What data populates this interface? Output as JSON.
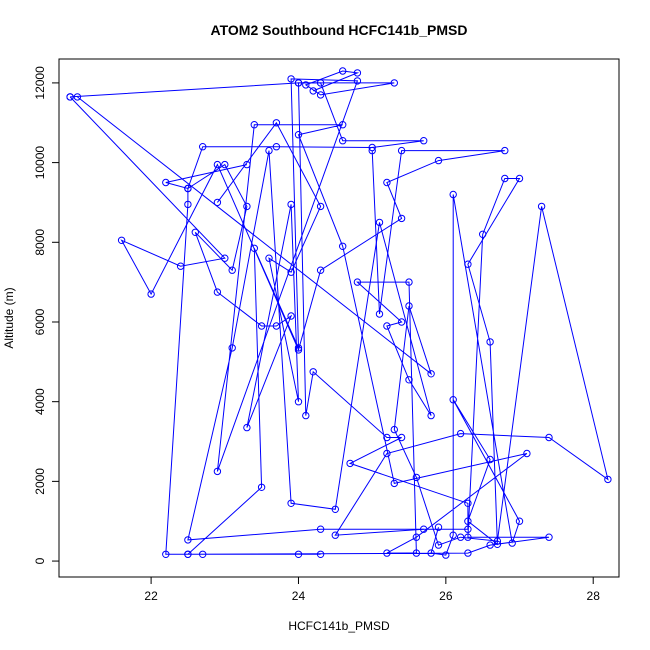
{
  "chart_data": {
    "type": "line",
    "title": "ATOM2 Southbound HCFC141b_PMSD",
    "xlabel": "HCFC141b_PMSD",
    "ylabel": "Altitude (m)",
    "xlim": [
      20.75,
      28.35
    ],
    "ylim": [
      -400,
      12600
    ],
    "x_ticks": [
      22,
      24,
      26,
      28
    ],
    "y_ticks": [
      0,
      2000,
      4000,
      6000,
      8000,
      10000,
      12000
    ],
    "x_tick_labels": [
      "22",
      "24",
      "26",
      "28"
    ],
    "y_tick_labels": [
      "0",
      "2000",
      "4000",
      "6000",
      "8000",
      "10000",
      "12000"
    ],
    "marker": "open-circle",
    "grid": false,
    "series": [
      {
        "color": "#0000ff",
        "points": [
          [
            22.5,
            170
          ],
          [
            24.3,
            170
          ],
          [
            24.0,
            170
          ],
          [
            22.7,
            170
          ],
          [
            22.2,
            170
          ],
          [
            22.5,
            8950
          ],
          [
            22.5,
            9350
          ],
          [
            22.7,
            10400
          ],
          [
            23.7,
            10400
          ],
          [
            25.0,
            10380
          ],
          [
            25.7,
            10550
          ],
          [
            24.6,
            10550
          ],
          [
            24.3,
            12000
          ],
          [
            24.0,
            12000
          ],
          [
            24.1,
            3650
          ],
          [
            24.2,
            4750
          ],
          [
            25.2,
            3100
          ],
          [
            25.4,
            3100
          ],
          [
            24.7,
            2450
          ],
          [
            26.3,
            1450
          ],
          [
            26.3,
            800
          ],
          [
            24.3,
            800
          ],
          [
            22.5,
            530
          ],
          [
            23.1,
            5350
          ],
          [
            23.6,
            10300
          ],
          [
            23.9,
            1450
          ],
          [
            24.5,
            1300
          ],
          [
            25.1,
            8500
          ],
          [
            25.8,
            3650
          ],
          [
            25.5,
            4550
          ],
          [
            25.2,
            5900
          ],
          [
            25.4,
            6000
          ],
          [
            24.8,
            7000
          ],
          [
            25.5,
            7000
          ],
          [
            25.6,
            200
          ],
          [
            25.2,
            200
          ],
          [
            25.6,
            600
          ],
          [
            27.1,
            2700
          ],
          [
            25.3,
            1950
          ],
          [
            24.6,
            7900
          ],
          [
            24.0,
            10700
          ],
          [
            24.6,
            10950
          ],
          [
            23.4,
            10950
          ],
          [
            22.9,
            2250
          ],
          [
            24.8,
            12050
          ],
          [
            23.9,
            12100
          ],
          [
            24.0,
            5350
          ],
          [
            23.4,
            7850
          ],
          [
            23.5,
            1850
          ],
          [
            22.5,
            170
          ],
          [
            26.3,
            200
          ],
          [
            26.6,
            400
          ],
          [
            27.4,
            600
          ],
          [
            26.3,
            600
          ],
          [
            26.5,
            8200
          ],
          [
            26.8,
            9600
          ],
          [
            27.0,
            9600
          ],
          [
            26.3,
            7450
          ],
          [
            26.6,
            5500
          ],
          [
            26.7,
            420
          ],
          [
            26.3,
            1000
          ],
          [
            26.6,
            2550
          ],
          [
            26.1,
            4050
          ],
          [
            27.0,
            1000
          ],
          [
            26.9,
            450
          ],
          [
            26.1,
            9200
          ],
          [
            26.1,
            650
          ],
          [
            26.0,
            150
          ],
          [
            25.8,
            200
          ],
          [
            25.9,
            850
          ]
        ]
      },
      {
        "color": "#0000ff",
        "points": [
          [
            20.9,
            11650
          ],
          [
            24.0,
            12000
          ],
          [
            25.3,
            12000
          ],
          [
            24.3,
            11700
          ],
          [
            24.1,
            11950
          ],
          [
            24.6,
            12300
          ],
          [
            24.8,
            12250
          ],
          [
            24.2,
            11800
          ]
        ]
      },
      {
        "color": "#0000ff",
        "points": [
          [
            20.9,
            11650
          ],
          [
            23.0,
            7600
          ],
          [
            22.4,
            7400
          ],
          [
            21.6,
            8050
          ],
          [
            22.0,
            6700
          ],
          [
            22.9,
            9950
          ],
          [
            24.0,
            5300
          ],
          [
            24.3,
            7300
          ],
          [
            25.4,
            8600
          ],
          [
            25.2,
            9500
          ],
          [
            25.9,
            10050
          ],
          [
            26.8,
            10300
          ],
          [
            25.4,
            10300
          ],
          [
            25.1,
            6200
          ],
          [
            25.0,
            10300
          ]
        ]
      },
      {
        "color": "#0000ff",
        "points": [
          [
            23.3,
            9950
          ],
          [
            22.2,
            9500
          ],
          [
            22.5,
            9350
          ],
          [
            23.0,
            9950
          ],
          [
            23.3,
            8900
          ],
          [
            23.1,
            7300
          ],
          [
            22.6,
            8250
          ],
          [
            22.9,
            6750
          ],
          [
            23.5,
            5900
          ],
          [
            23.7,
            5900
          ],
          [
            23.9,
            6150
          ],
          [
            23.3,
            3350
          ],
          [
            23.9,
            8950
          ],
          [
            24.0,
            4000
          ],
          [
            23.6,
            7600
          ],
          [
            23.9,
            7250
          ],
          [
            24.3,
            8900
          ],
          [
            23.7,
            11000
          ],
          [
            22.9,
            9000
          ]
        ]
      },
      {
        "color": "#0000ff",
        "points": [
          [
            21.0,
            11650
          ],
          [
            25.8,
            4700
          ],
          [
            25.5,
            6400
          ],
          [
            25.3,
            3300
          ],
          [
            25.6,
            2100
          ],
          [
            25.9,
            400
          ],
          [
            26.2,
            600
          ],
          [
            26.7,
            500
          ],
          [
            27.3,
            8900
          ],
          [
            28.2,
            2050
          ],
          [
            27.4,
            3100
          ],
          [
            26.2,
            3200
          ],
          [
            25.2,
            2700
          ],
          [
            24.5,
            650
          ],
          [
            25.7,
            800
          ]
        ]
      }
    ]
  }
}
